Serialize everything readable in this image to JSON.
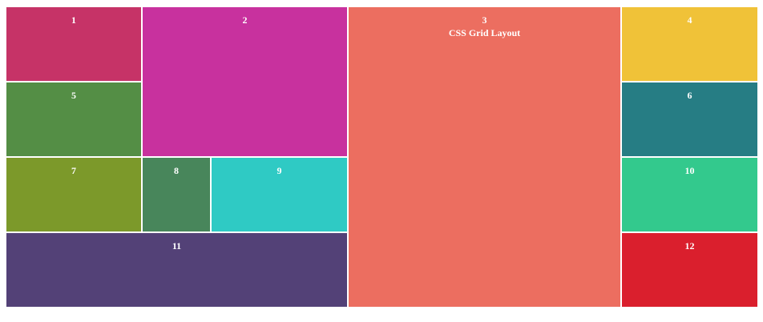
{
  "cells": {
    "c1": {
      "label": "1",
      "color": "#c63367"
    },
    "c2": {
      "label": "2",
      "color": "#c8319e"
    },
    "c3": {
      "label": "3",
      "subtitle": "CSS Grid Layout",
      "color": "#ec6e60"
    },
    "c4": {
      "label": "4",
      "color": "#f0c238"
    },
    "c5": {
      "label": "5",
      "color": "#548e45"
    },
    "c6": {
      "label": "6",
      "color": "#267d84"
    },
    "c7": {
      "label": "7",
      "color": "#7c992a"
    },
    "c8": {
      "label": "8",
      "color": "#48865b"
    },
    "c9": {
      "label": "9",
      "color": "#2fcac4"
    },
    "c10": {
      "label": "10",
      "color": "#33c98d"
    },
    "c11": {
      "label": "11",
      "color": "#534177"
    },
    "c12": {
      "label": "12",
      "color": "#da1f2d"
    }
  }
}
